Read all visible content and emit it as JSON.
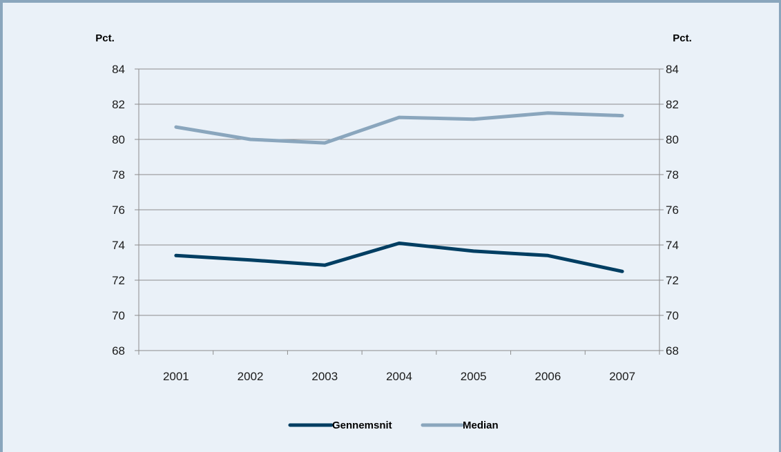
{
  "chart_data": {
    "type": "line",
    "left_axis_unit": "Pct.",
    "right_axis_unit": "Pct.",
    "x": [
      "2001",
      "2002",
      "2003",
      "2004",
      "2005",
      "2006",
      "2007"
    ],
    "ylim": [
      68,
      84
    ],
    "yticks": [
      "68",
      "70",
      "72",
      "74",
      "76",
      "78",
      "80",
      "82",
      "84"
    ],
    "grid": true,
    "legend_position": "bottom-center",
    "series": [
      {
        "name": "Gennemsnit",
        "color": "#003e62",
        "values": [
          73.4,
          73.15,
          72.85,
          74.1,
          73.65,
          73.4,
          72.5
        ]
      },
      {
        "name": "Median",
        "color": "#8aa6bd",
        "values": [
          80.7,
          80.0,
          79.8,
          81.25,
          81.15,
          81.5,
          81.35
        ]
      }
    ]
  }
}
